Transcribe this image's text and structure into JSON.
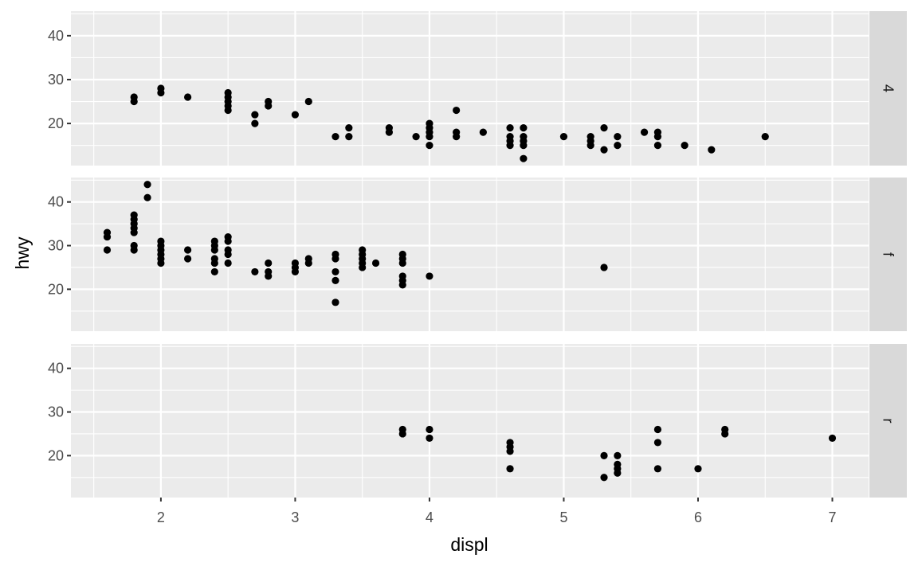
{
  "chart_data": {
    "type": "scatter",
    "xlabel": "displ",
    "ylabel": "hwy",
    "xlim": [
      1.33,
      7.27
    ],
    "ylim": [
      10.4,
      45.6
    ],
    "x_ticks": [
      2,
      3,
      4,
      5,
      6,
      7
    ],
    "y_ticks": [
      20,
      30,
      40
    ],
    "facets": [
      {
        "strip_label": "4",
        "points": [
          [
            1.8,
            26
          ],
          [
            1.8,
            25
          ],
          [
            2.0,
            28
          ],
          [
            2.0,
            27
          ],
          [
            2.2,
            26
          ],
          [
            2.5,
            27
          ],
          [
            2.5,
            26
          ],
          [
            2.5,
            25
          ],
          [
            2.5,
            24
          ],
          [
            2.5,
            23
          ],
          [
            2.7,
            22
          ],
          [
            2.7,
            20
          ],
          [
            2.8,
            25
          ],
          [
            2.8,
            24
          ],
          [
            3.0,
            22
          ],
          [
            3.1,
            25
          ],
          [
            3.3,
            17
          ],
          [
            3.4,
            19
          ],
          [
            3.4,
            17
          ],
          [
            3.7,
            19
          ],
          [
            3.7,
            18
          ],
          [
            3.9,
            17
          ],
          [
            4.0,
            20
          ],
          [
            4.0,
            19
          ],
          [
            4.0,
            18
          ],
          [
            4.0,
            17
          ],
          [
            4.0,
            15
          ],
          [
            4.2,
            23
          ],
          [
            4.2,
            18
          ],
          [
            4.2,
            17
          ],
          [
            4.4,
            18
          ],
          [
            4.6,
            19
          ],
          [
            4.6,
            17
          ],
          [
            4.6,
            16
          ],
          [
            4.6,
            15
          ],
          [
            4.7,
            19
          ],
          [
            4.7,
            17
          ],
          [
            4.7,
            16
          ],
          [
            4.7,
            15
          ],
          [
            4.7,
            12
          ],
          [
            5.0,
            17
          ],
          [
            5.2,
            17
          ],
          [
            5.2,
            16
          ],
          [
            5.2,
            15
          ],
          [
            5.3,
            19
          ],
          [
            5.3,
            14
          ],
          [
            5.4,
            17
          ],
          [
            5.4,
            15
          ],
          [
            5.6,
            18
          ],
          [
            5.7,
            18
          ],
          [
            5.7,
            17
          ],
          [
            5.7,
            15
          ],
          [
            5.9,
            15
          ],
          [
            6.1,
            14
          ],
          [
            6.5,
            17
          ]
        ]
      },
      {
        "strip_label": "f",
        "points": [
          [
            1.6,
            33
          ],
          [
            1.6,
            32
          ],
          [
            1.6,
            29
          ],
          [
            1.8,
            37
          ],
          [
            1.8,
            36
          ],
          [
            1.8,
            35
          ],
          [
            1.8,
            34
          ],
          [
            1.8,
            33
          ],
          [
            1.8,
            30
          ],
          [
            1.8,
            29
          ],
          [
            1.9,
            44
          ],
          [
            1.9,
            41
          ],
          [
            2.0,
            31
          ],
          [
            2.0,
            30
          ],
          [
            2.0,
            29
          ],
          [
            2.0,
            28
          ],
          [
            2.0,
            27
          ],
          [
            2.0,
            26
          ],
          [
            2.2,
            29
          ],
          [
            2.2,
            27
          ],
          [
            2.4,
            31
          ],
          [
            2.4,
            30
          ],
          [
            2.4,
            29
          ],
          [
            2.4,
            27
          ],
          [
            2.4,
            26
          ],
          [
            2.4,
            24
          ],
          [
            2.5,
            32
          ],
          [
            2.5,
            31
          ],
          [
            2.5,
            29
          ],
          [
            2.5,
            28
          ],
          [
            2.5,
            26
          ],
          [
            2.7,
            24
          ],
          [
            2.8,
            26
          ],
          [
            2.8,
            24
          ],
          [
            2.8,
            23
          ],
          [
            3.0,
            26
          ],
          [
            3.0,
            25
          ],
          [
            3.0,
            24
          ],
          [
            3.1,
            27
          ],
          [
            3.1,
            26
          ],
          [
            3.3,
            28
          ],
          [
            3.3,
            27
          ],
          [
            3.3,
            24
          ],
          [
            3.3,
            22
          ],
          [
            3.3,
            17
          ],
          [
            3.5,
            29
          ],
          [
            3.5,
            28
          ],
          [
            3.5,
            27
          ],
          [
            3.5,
            26
          ],
          [
            3.5,
            25
          ],
          [
            3.6,
            26
          ],
          [
            3.8,
            28
          ],
          [
            3.8,
            27
          ],
          [
            3.8,
            26
          ],
          [
            3.8,
            23
          ],
          [
            3.8,
            22
          ],
          [
            3.8,
            21
          ],
          [
            4.0,
            23
          ],
          [
            5.3,
            25
          ]
        ]
      },
      {
        "strip_label": "r",
        "points": [
          [
            3.8,
            26
          ],
          [
            3.8,
            25
          ],
          [
            4.0,
            26
          ],
          [
            4.0,
            24
          ],
          [
            4.6,
            23
          ],
          [
            4.6,
            22
          ],
          [
            4.6,
            21
          ],
          [
            4.6,
            17
          ],
          [
            5.3,
            20
          ],
          [
            5.3,
            15
          ],
          [
            5.4,
            20
          ],
          [
            5.4,
            18
          ],
          [
            5.4,
            17
          ],
          [
            5.4,
            16
          ],
          [
            5.7,
            26
          ],
          [
            5.7,
            23
          ],
          [
            5.7,
            17
          ],
          [
            6.0,
            17
          ],
          [
            6.2,
            26
          ],
          [
            6.2,
            25
          ],
          [
            7.0,
            24
          ]
        ]
      }
    ]
  }
}
